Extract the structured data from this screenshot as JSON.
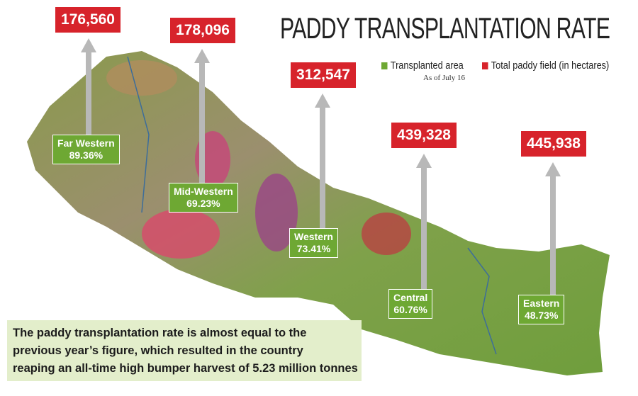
{
  "title": "PADDY TRANSPLANTATION RATE",
  "legend": {
    "transplanted": "Transplanted area",
    "total": "Total paddy field (in hectares)",
    "note": "As of July 16"
  },
  "regions": [
    {
      "name": "Far Western",
      "rate": "89.36%",
      "total": "176,560"
    },
    {
      "name": "Mid-Western",
      "rate": "69.23%",
      "total": "178,096"
    },
    {
      "name": "Western",
      "rate": "73.41%",
      "total": "312,547"
    },
    {
      "name": "Central",
      "rate": "60.76%",
      "total": "439,328"
    },
    {
      "name": "Eastern",
      "rate": "48.73%",
      "total": "445,938"
    }
  ],
  "caption": [
    "The paddy transplantation rate is almost equal to the",
    "previous year’s figure, which resulted in the country",
    "reaping an all-time high bumper harvest of 5.23 million tonnes"
  ]
}
